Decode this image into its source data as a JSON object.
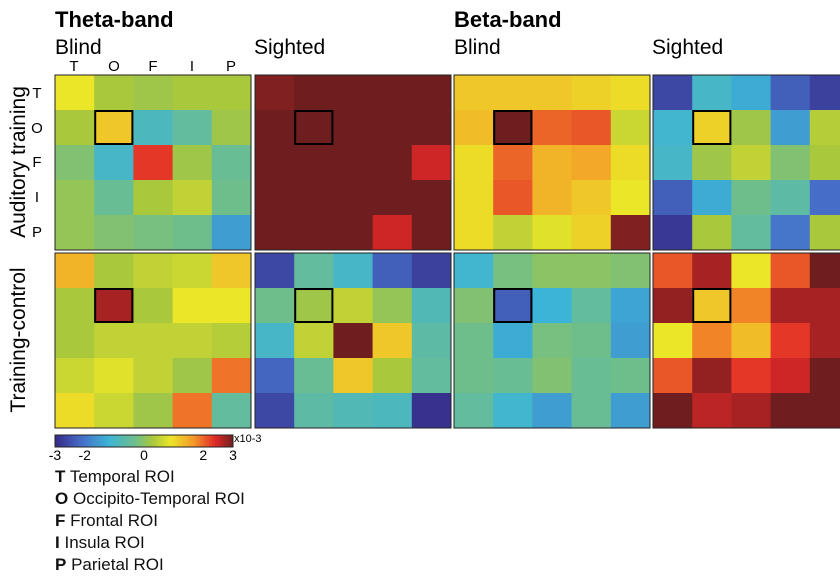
{
  "chart_data": {
    "type": "heatmap",
    "band_titles": [
      "Theta-band",
      "Beta-band"
    ],
    "condition_titles": [
      "Blind",
      "Sighted",
      "Blind",
      "Sighted"
    ],
    "row_titles": [
      "Auditory training",
      "Training-control"
    ],
    "roi_labels": [
      "T",
      "O",
      "F",
      "I",
      "P"
    ],
    "colorbar": {
      "min": -3,
      "max": 3,
      "ticks": [
        "-3",
        "-2",
        "0",
        "2",
        "3"
      ],
      "tick_values": [
        -3,
        -2,
        0,
        2,
        3
      ],
      "unit": "x10-3"
    },
    "highlighted_cell": {
      "row": "O",
      "col": "O"
    },
    "panels": [
      {
        "band": "Theta-band",
        "group": "Blind",
        "row": "Auditory training",
        "values": [
          [
            0.9,
            0.3,
            0.2,
            0.3,
            0.3
          ],
          [
            0.3,
            1.2,
            -0.9,
            -0.5,
            0.2
          ],
          [
            -0.1,
            -1.0,
            2.3,
            0.2,
            -0.4
          ],
          [
            0.1,
            -0.4,
            0.3,
            0.5,
            -0.3
          ],
          [
            0.1,
            -0.1,
            -0.2,
            -0.3,
            -1.5
          ]
        ]
      },
      {
        "band": "Theta-band",
        "group": "Sighted",
        "row": "Auditory training",
        "values": [
          [
            2.9,
            3.4,
            3.4,
            3.4,
            3.4
          ],
          [
            3.4,
            3.4,
            3.4,
            3.4,
            3.4
          ],
          [
            3.4,
            3.4,
            3.4,
            3.4,
            2.5
          ],
          [
            3.4,
            3.4,
            3.4,
            3.4,
            3.4
          ],
          [
            3.4,
            3.4,
            3.4,
            2.5,
            3.4
          ]
        ]
      },
      {
        "band": "Beta-band",
        "group": "Blind",
        "row": "Auditory training",
        "values": [
          [
            1.2,
            1.2,
            1.2,
            1.1,
            1.0
          ],
          [
            1.3,
            3.0,
            2.0,
            2.1,
            0.6
          ],
          [
            1.0,
            2.0,
            1.4,
            1.5,
            1.0
          ],
          [
            1.0,
            2.1,
            1.4,
            1.2,
            0.9
          ],
          [
            1.0,
            0.5,
            0.8,
            1.1,
            2.9
          ]
        ]
      },
      {
        "band": "Beta-band",
        "group": "Sighted",
        "row": "Auditory training",
        "values": [
          [
            -2.6,
            -1.0,
            -1.3,
            -2.3,
            -2.7
          ],
          [
            -1.1,
            1.1,
            0.2,
            -1.5,
            0.4
          ],
          [
            -1.0,
            0.2,
            0.5,
            -0.1,
            0.3
          ],
          [
            -2.3,
            -1.3,
            -0.3,
            -0.6,
            -2.1
          ],
          [
            -2.8,
            0.3,
            -0.5,
            -2.0,
            0.3
          ]
        ]
      },
      {
        "band": "Theta-band",
        "group": "Blind",
        "row": "Training-control",
        "values": [
          [
            1.4,
            0.3,
            0.5,
            0.6,
            1.2
          ],
          [
            0.3,
            2.7,
            0.3,
            0.9,
            0.9
          ],
          [
            0.3,
            0.5,
            0.5,
            0.5,
            0.4
          ],
          [
            0.6,
            0.8,
            0.5,
            0.2,
            1.9
          ],
          [
            1.0,
            0.6,
            0.2,
            1.9,
            -0.5
          ]
        ]
      },
      {
        "band": "Theta-band",
        "group": "Sighted",
        "row": "Training-control",
        "values": [
          [
            -2.6,
            -0.5,
            -1.0,
            -2.3,
            -2.7
          ],
          [
            -0.3,
            0.2,
            0.5,
            0.1,
            -0.8
          ],
          [
            -1.0,
            0.5,
            3.0,
            1.2,
            -0.6
          ],
          [
            -2.2,
            -0.4,
            1.2,
            0.3,
            -0.5
          ],
          [
            -2.6,
            -0.6,
            -0.8,
            -0.9,
            -2.9
          ]
        ]
      },
      {
        "band": "Beta-band",
        "group": "Blind",
        "row": "Training-control",
        "values": [
          [
            -1.1,
            -0.2,
            0.0,
            0.0,
            -0.1
          ],
          [
            -0.1,
            -2.3,
            -1.2,
            -0.5,
            -1.4
          ],
          [
            -0.3,
            -1.3,
            -0.2,
            -0.3,
            -1.5
          ],
          [
            -0.3,
            -0.4,
            -0.1,
            -0.4,
            -0.3
          ],
          [
            -0.5,
            -1.1,
            -1.5,
            -0.4,
            -1.5
          ]
        ]
      },
      {
        "band": "Beta-band",
        "group": "Sighted",
        "row": "Training-control",
        "values": [
          [
            2.1,
            2.7,
            0.9,
            2.1,
            3.3
          ],
          [
            2.8,
            1.2,
            1.8,
            2.7,
            2.7
          ],
          [
            0.9,
            1.8,
            1.3,
            2.3,
            2.7
          ],
          [
            2.1,
            2.8,
            2.3,
            2.5,
            3.3
          ],
          [
            3.3,
            2.6,
            2.7,
            3.3,
            3.3
          ]
        ]
      }
    ]
  },
  "legend": [
    {
      "key": "T",
      "label": "Temporal ROI"
    },
    {
      "key": "O",
      "label": "Occipito-Temporal ROI"
    },
    {
      "key": "F",
      "label": "Frontal ROI"
    },
    {
      "key": "I",
      "label": "Insula ROI"
    },
    {
      "key": "P",
      "label": "Parietal ROI"
    }
  ]
}
